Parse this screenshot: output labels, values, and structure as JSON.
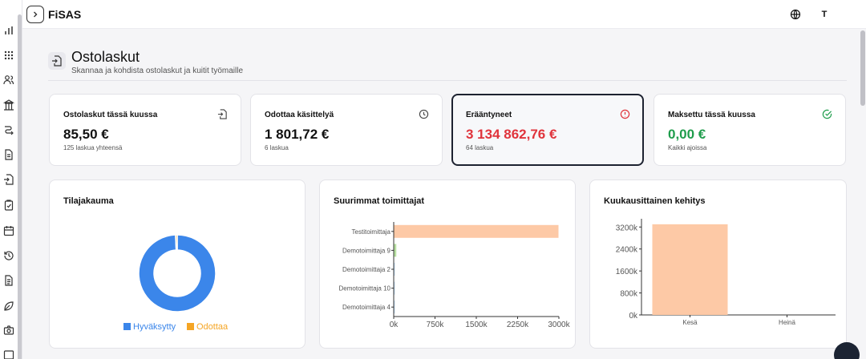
{
  "app": {
    "name": "FiSAS",
    "avatar_initial": "T"
  },
  "page": {
    "title": "Ostolaskut",
    "subtitle": "Skannaa ja kohdista ostolaskut ja kuitit työmaille"
  },
  "stats": [
    {
      "title": "Ostolaskut tässä kuussa",
      "value": "85,50 €",
      "sub": "125 laskua yhteensä",
      "icon": "file-import-icon",
      "value_color": "#111111"
    },
    {
      "title": "Odottaa käsittelyä",
      "value": "1 801,72 €",
      "sub": "6 laskua",
      "icon": "clock-icon",
      "value_color": "#111111"
    },
    {
      "title": "Erääntyneet",
      "value": "3 134 862,76 €",
      "sub": "64 laskua",
      "icon": "alert-circle-icon",
      "value_color": "#e0343c"
    },
    {
      "title": "Maksettu tässä kuussa",
      "value": "0,00 €",
      "sub": "Kaikki ajoissa",
      "icon": "check-circle-icon",
      "value_color": "#1f9d4c"
    }
  ],
  "charts": {
    "status": {
      "title": "Tilajakauma"
    },
    "suppliers": {
      "title": "Suurimmat toimittajat"
    },
    "monthly": {
      "title": "Kuukausittainen kehitys"
    }
  },
  "chart_data": [
    {
      "type": "pie",
      "title": "Tilajakauma",
      "categories": [
        "Hyväksytty",
        "Odottaa"
      ],
      "values": [
        99.3,
        0.7
      ],
      "colors": [
        "#3b86ea",
        "#f5a524"
      ],
      "legend": "bottom"
    },
    {
      "type": "bar",
      "orientation": "horizontal",
      "title": "Suurimmat toimittajat",
      "categories": [
        "Testitoimittaja",
        "Demotoimittaja 9",
        "Demotoimittaja 2",
        "Demotoimittaja 10",
        "Demotoimittaja 4"
      ],
      "values": [
        3100000,
        40000,
        3000,
        2000,
        1000
      ],
      "colors": [
        "#fdc9a6",
        "#b7dfa0",
        "#c7dff5",
        "#c7dff5",
        "#c7dff5"
      ],
      "xlim": [
        0,
        3000000
      ],
      "xticks": [
        "0k",
        "750k",
        "1500k",
        "2250k",
        "3000k"
      ],
      "xtick_values": [
        0,
        750000,
        1500000,
        2250000,
        3000000
      ]
    },
    {
      "type": "bar",
      "title": "Kuukausittainen kehitys",
      "categories": [
        "Kesä",
        "Heinä"
      ],
      "values": [
        3300000,
        0
      ],
      "color": "#fdc9a6",
      "ylim": [
        0,
        3500000
      ],
      "yticks": [
        "0k",
        "800k",
        "1600k",
        "2400k",
        "3200k"
      ],
      "ytick_values": [
        0,
        800000,
        1600000,
        2400000,
        3200000
      ]
    }
  ]
}
